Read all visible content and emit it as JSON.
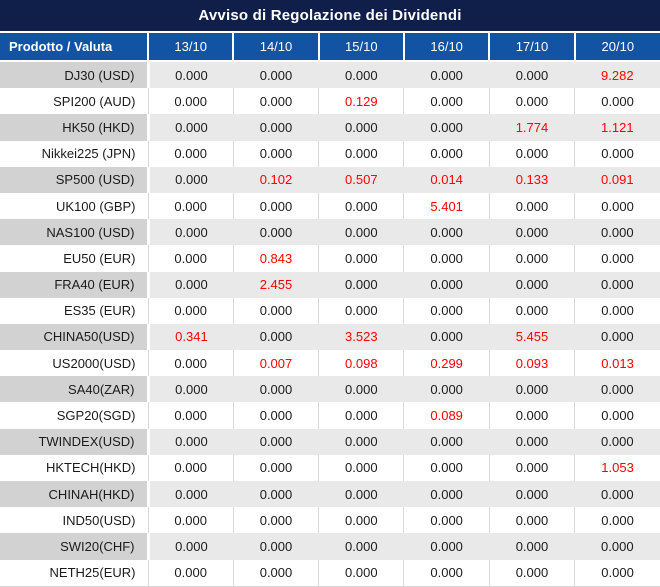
{
  "title": "Avviso di Regolazione dei Dividendi",
  "table": {
    "product_header": "Prodotto / Valuta",
    "date_headers": [
      "13/10",
      "14/10",
      "15/10",
      "16/10",
      "17/10",
      "20/10"
    ],
    "zero_value": "0.000",
    "rows": [
      {
        "product": "DJ30 (USD)",
        "values": [
          "0.000",
          "0.000",
          "0.000",
          "0.000",
          "0.000",
          "9.282"
        ]
      },
      {
        "product": "SPI200 (AUD)",
        "values": [
          "0.000",
          "0.000",
          "0.129",
          "0.000",
          "0.000",
          "0.000"
        ]
      },
      {
        "product": "HK50 (HKD)",
        "values": [
          "0.000",
          "0.000",
          "0.000",
          "0.000",
          "1.774",
          "1.121"
        ]
      },
      {
        "product": "Nikkei225 (JPN)",
        "values": [
          "0.000",
          "0.000",
          "0.000",
          "0.000",
          "0.000",
          "0.000"
        ]
      },
      {
        "product": "SP500 (USD)",
        "values": [
          "0.000",
          "0.102",
          "0.507",
          "0.014",
          "0.133",
          "0.091"
        ]
      },
      {
        "product": "UK100 (GBP)",
        "values": [
          "0.000",
          "0.000",
          "0.000",
          "5.401",
          "0.000",
          "0.000"
        ]
      },
      {
        "product": "NAS100 (USD)",
        "values": [
          "0.000",
          "0.000",
          "0.000",
          "0.000",
          "0.000",
          "0.000"
        ]
      },
      {
        "product": "EU50 (EUR)",
        "values": [
          "0.000",
          "0.843",
          "0.000",
          "0.000",
          "0.000",
          "0.000"
        ]
      },
      {
        "product": "FRA40 (EUR)",
        "values": [
          "0.000",
          "2.455",
          "0.000",
          "0.000",
          "0.000",
          "0.000"
        ]
      },
      {
        "product": "ES35 (EUR)",
        "values": [
          "0.000",
          "0.000",
          "0.000",
          "0.000",
          "0.000",
          "0.000"
        ]
      },
      {
        "product": "CHINA50(USD)",
        "values": [
          "0.341",
          "0.000",
          "3.523",
          "0.000",
          "5.455",
          "0.000"
        ]
      },
      {
        "product": "US2000(USD)",
        "values": [
          "0.000",
          "0.007",
          "0.098",
          "0.299",
          "0.093",
          "0.013"
        ]
      },
      {
        "product": "SA40(ZAR)",
        "values": [
          "0.000",
          "0.000",
          "0.000",
          "0.000",
          "0.000",
          "0.000"
        ]
      },
      {
        "product": "SGP20(SGD)",
        "values": [
          "0.000",
          "0.000",
          "0.000",
          "0.089",
          "0.000",
          "0.000"
        ]
      },
      {
        "product": "TWINDEX(USD)",
        "values": [
          "0.000",
          "0.000",
          "0.000",
          "0.000",
          "0.000",
          "0.000"
        ]
      },
      {
        "product": "HKTECH(HKD)",
        "values": [
          "0.000",
          "0.000",
          "0.000",
          "0.000",
          "0.000",
          "1.053"
        ]
      },
      {
        "product": "CHINAH(HKD)",
        "values": [
          "0.000",
          "0.000",
          "0.000",
          "0.000",
          "0.000",
          "0.000"
        ]
      },
      {
        "product": "IND50(USD)",
        "values": [
          "0.000",
          "0.000",
          "0.000",
          "0.000",
          "0.000",
          "0.000"
        ]
      },
      {
        "product": "SWI20(CHF)",
        "values": [
          "0.000",
          "0.000",
          "0.000",
          "0.000",
          "0.000",
          "0.000"
        ]
      },
      {
        "product": "NETH25(EUR)",
        "values": [
          "0.000",
          "0.000",
          "0.000",
          "0.000",
          "0.000",
          "0.000"
        ]
      }
    ]
  },
  "colors": {
    "title_bg": "#101f4a",
    "header_bg": "#1253a4",
    "stripe_product_bg": "#d2d2d2",
    "stripe_value_bg": "#e9e9e9",
    "gridline": "#d9d9d9",
    "text": "#1b1b1b",
    "nonzero_red": "#ff0000"
  }
}
